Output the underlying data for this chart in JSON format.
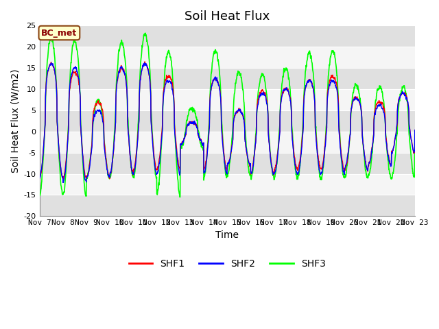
{
  "title": "Soil Heat Flux",
  "ylabel": "Soil Heat Flux (W/m2)",
  "xlabel": "Time",
  "ylim": [
    -20,
    25
  ],
  "yticks": [
    -20,
    -15,
    -10,
    -5,
    0,
    5,
    10,
    15,
    20,
    25
  ],
  "label": "BC_met",
  "legend": [
    "SHF1",
    "SHF2",
    "SHF3"
  ],
  "colors": [
    "red",
    "blue",
    "lime"
  ],
  "n_days": 16,
  "start_day": 7,
  "title_fontsize": 13,
  "axis_fontsize": 10,
  "tick_fontsize": 8,
  "band_light": "#f5f5f5",
  "band_dark": "#e0e0e0",
  "fig_bg": "#ffffff"
}
